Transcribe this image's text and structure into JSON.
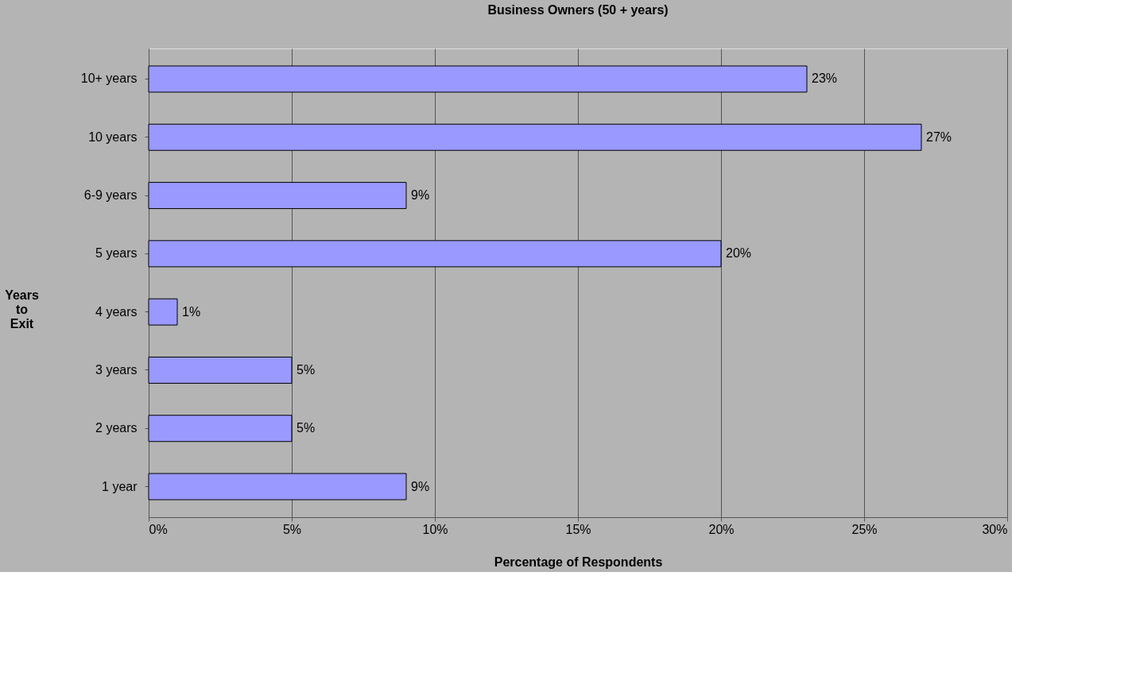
{
  "chart_data": {
    "type": "bar",
    "orientation": "horizontal",
    "title": "Business Owners (50 + years)",
    "xlabel": "Percentage of Respondents",
    "ylabel": "Years to Exit",
    "categories": [
      "10+ years",
      "10 years",
      "6-9 years",
      "5 years",
      "4 years",
      "3 years",
      "2 years",
      "1 year"
    ],
    "values": [
      23,
      27,
      9,
      20,
      1,
      5,
      5,
      9
    ],
    "value_labels": [
      "23%",
      "27%",
      "9%",
      "20%",
      "1%",
      "5%",
      "5%",
      "9%"
    ],
    "color": "#9999ff",
    "xlim": [
      0,
      30
    ],
    "xticks": [
      {
        "value": 0,
        "label": "0%"
      },
      {
        "value": 5,
        "label": "5%"
      },
      {
        "value": 10,
        "label": "10%"
      },
      {
        "value": 15,
        "label": "15%"
      },
      {
        "value": 20,
        "label": "20%"
      },
      {
        "value": 25,
        "label": "25%"
      },
      {
        "value": 30,
        "label": "30%"
      }
    ],
    "grid": "x"
  }
}
